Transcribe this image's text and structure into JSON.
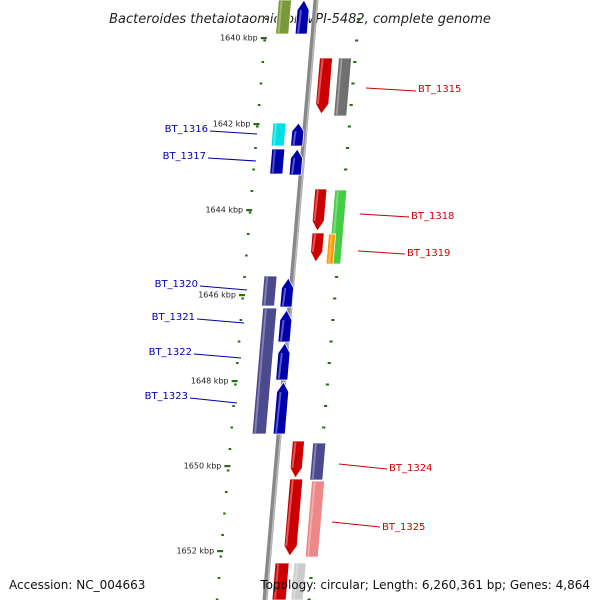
{
  "title": "Bacteroides thetaiotaomicron VPI-5482, complete genome",
  "accession": "Accession: NC_004663",
  "topology": "Topology: circular; Length: 6,260,361 bp; Genes: 4,864",
  "ticks": [
    "1640 kbp",
    "1642 kbp",
    "1644 kbp",
    "1646 kbp",
    "1648 kbp",
    "1650 kbp",
    "1652 kbp"
  ],
  "genes": [
    {
      "id": "BT_1315",
      "strand": "forward",
      "color": "#cc0000"
    },
    {
      "id": "BT_1316",
      "strand": "reverse",
      "color": "#0000aa"
    },
    {
      "id": "BT_1317",
      "strand": "reverse",
      "color": "#0000aa"
    },
    {
      "id": "BT_1318",
      "strand": "forward",
      "color": "#cc0000"
    },
    {
      "id": "BT_1319",
      "strand": "forward",
      "color": "#cc0000"
    },
    {
      "id": "BT_1320",
      "strand": "reverse",
      "color": "#0000aa"
    },
    {
      "id": "BT_1321",
      "strand": "reverse",
      "color": "#0000aa"
    },
    {
      "id": "BT_1322",
      "strand": "reverse",
      "color": "#0000aa"
    },
    {
      "id": "BT_1323",
      "strand": "reverse",
      "color": "#0000aa"
    },
    {
      "id": "BT_1324",
      "strand": "forward",
      "color": "#cc0000"
    },
    {
      "id": "BT_1325",
      "strand": "forward",
      "color": "#cc0000"
    }
  ],
  "colors": {
    "backbone": "#888888",
    "tick_mark": "#2a6a1a",
    "forward_label": "#cc0000",
    "reverse_label": "#0000aa",
    "cog_purple": "#4b4a8e",
    "cog_gray": "#707070",
    "cog_cyan": "#00e0e0",
    "cog_green": "#44cc44",
    "cog_orange": "#ff9900",
    "cog_pink": "#ee8888",
    "cog_olive": "#7a9a3a"
  }
}
